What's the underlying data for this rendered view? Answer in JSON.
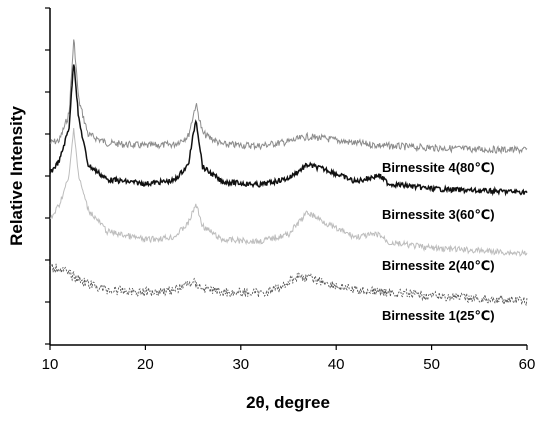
{
  "chart_data": {
    "type": "line",
    "title": "",
    "xlabel": "2θ, degree",
    "ylabel": "Relative Intensity",
    "xlim": [
      10,
      60
    ],
    "xticks": [
      10,
      20,
      30,
      40,
      50,
      60
    ],
    "grid": false,
    "legend": "none",
    "series": [
      {
        "name": "Birnessite 4(80℃)",
        "color": "#8c8c8c",
        "points": [
          [
            10,
            0.55
          ],
          [
            11,
            0.65
          ],
          [
            12,
            1.6
          ],
          [
            12.5,
            4.3
          ],
          [
            13,
            2.1
          ],
          [
            14,
            0.85
          ],
          [
            16,
            0.55
          ],
          [
            20,
            0.45
          ],
          [
            23,
            0.5
          ],
          [
            24.5,
            0.8
          ],
          [
            25.3,
            1.95
          ],
          [
            26,
            0.9
          ],
          [
            28,
            0.5
          ],
          [
            32,
            0.45
          ],
          [
            35,
            0.6
          ],
          [
            37,
            0.78
          ],
          [
            39,
            0.7
          ],
          [
            42,
            0.55
          ],
          [
            45,
            0.45
          ],
          [
            50,
            0.38
          ],
          [
            55,
            0.32
          ],
          [
            60,
            0.3
          ]
        ]
      },
      {
        "name": "Birnessite 3(60℃)",
        "color": "#111111",
        "points": [
          [
            10,
            0.7
          ],
          [
            11,
            1.0
          ],
          [
            12,
            1.8
          ],
          [
            12.5,
            3.4
          ],
          [
            13,
            2.0
          ],
          [
            14,
            0.9
          ],
          [
            16,
            0.55
          ],
          [
            20,
            0.45
          ],
          [
            23,
            0.52
          ],
          [
            24.5,
            0.9
          ],
          [
            25.3,
            2.0
          ],
          [
            26,
            0.85
          ],
          [
            28,
            0.5
          ],
          [
            32,
            0.42
          ],
          [
            35,
            0.58
          ],
          [
            37,
            0.9
          ],
          [
            39,
            0.78
          ],
          [
            42,
            0.5
          ],
          [
            44.5,
            0.65
          ],
          [
            45.5,
            0.45
          ],
          [
            50,
            0.33
          ],
          [
            55,
            0.28
          ],
          [
            60,
            0.25
          ]
        ]
      },
      {
        "name": "Birnessite 2(40℃)",
        "color": "#bdbdbd",
        "points": [
          [
            10,
            0.8
          ],
          [
            11,
            1.1
          ],
          [
            12,
            1.6
          ],
          [
            12.5,
            2.5
          ],
          [
            13,
            1.6
          ],
          [
            14,
            1.0
          ],
          [
            16,
            0.6
          ],
          [
            20,
            0.45
          ],
          [
            23,
            0.5
          ],
          [
            24.5,
            0.75
          ],
          [
            25.3,
            1.1
          ],
          [
            26,
            0.7
          ],
          [
            28,
            0.45
          ],
          [
            32,
            0.42
          ],
          [
            35,
            0.55
          ],
          [
            37,
            0.95
          ],
          [
            38,
            0.85
          ],
          [
            40,
            0.65
          ],
          [
            42,
            0.5
          ],
          [
            44.5,
            0.55
          ],
          [
            45.5,
            0.4
          ],
          [
            50,
            0.3
          ],
          [
            55,
            0.25
          ],
          [
            60,
            0.2
          ]
        ]
      },
      {
        "name": "Birnessite 1(25℃)",
        "color": "#555555",
        "points": [
          [
            10,
            1.05
          ],
          [
            11,
            1.05
          ],
          [
            12,
            0.9
          ],
          [
            14,
            0.65
          ],
          [
            16,
            0.5
          ],
          [
            20,
            0.45
          ],
          [
            23,
            0.5
          ],
          [
            25,
            0.7
          ],
          [
            26,
            0.55
          ],
          [
            28,
            0.45
          ],
          [
            32,
            0.42
          ],
          [
            34,
            0.55
          ],
          [
            36,
            0.85
          ],
          [
            38,
            0.75
          ],
          [
            40,
            0.6
          ],
          [
            42,
            0.5
          ],
          [
            45,
            0.45
          ],
          [
            50,
            0.35
          ],
          [
            55,
            0.28
          ],
          [
            60,
            0.22
          ]
        ]
      }
    ]
  }
}
